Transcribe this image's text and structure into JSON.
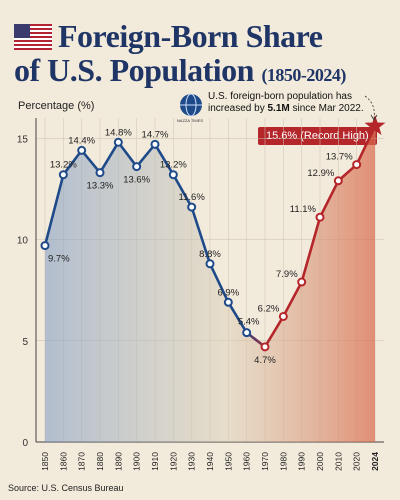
{
  "header": {
    "title_line1": "Foreign-Born Share",
    "title_line2": "of U.S. Population",
    "title_range": "(1850-2024)"
  },
  "flag_icon": "us-flag-icon",
  "logo": {
    "icon": "globe-logo-icon",
    "text": "NAZZA TIMES"
  },
  "y_axis_label": "Percentage (%)",
  "annotation": {
    "line1": "U.S. foreign-born population has",
    "line2_prefix": "increased by ",
    "line2_bold": "5.1M",
    "line2_suffix": " since Mar 2022."
  },
  "record_label": "15.6% (Record High)",
  "source": "Source: U.S. Census Bureau",
  "colors": {
    "title": "#1f3566",
    "line_early": "#1f4a8a",
    "line_late": "#b5262a",
    "record_badge": "#b5262a"
  },
  "chart_data": {
    "type": "line",
    "x": [
      "1850",
      "1860",
      "1870",
      "1880",
      "1890",
      "1900",
      "1910",
      "1920",
      "1930",
      "1940",
      "1950",
      "1960",
      "1970",
      "1980",
      "1990",
      "2000",
      "2010",
      "2020",
      "2024"
    ],
    "values": [
      9.7,
      13.2,
      14.4,
      13.3,
      14.8,
      13.6,
      14.7,
      13.2,
      11.6,
      8.8,
      6.9,
      5.4,
      4.7,
      6.2,
      7.9,
      11.1,
      12.9,
      13.7,
      15.6
    ],
    "labels": [
      "9.7%",
      "13.2%",
      "14.4%",
      "13.3%",
      "14.8%",
      "13.6%",
      "14.7%",
      "13.2%",
      "11.6%",
      "8.8%",
      "6.9%",
      "5.4%",
      "4.7%",
      "6.2%",
      "7.9%",
      "11.1%",
      "12.9%",
      "13.7%",
      ""
    ],
    "yticks": [
      "0",
      "5",
      "10",
      "15"
    ],
    "ylim": [
      0,
      16
    ],
    "ylabel": "Percentage (%)",
    "grid": true
  }
}
